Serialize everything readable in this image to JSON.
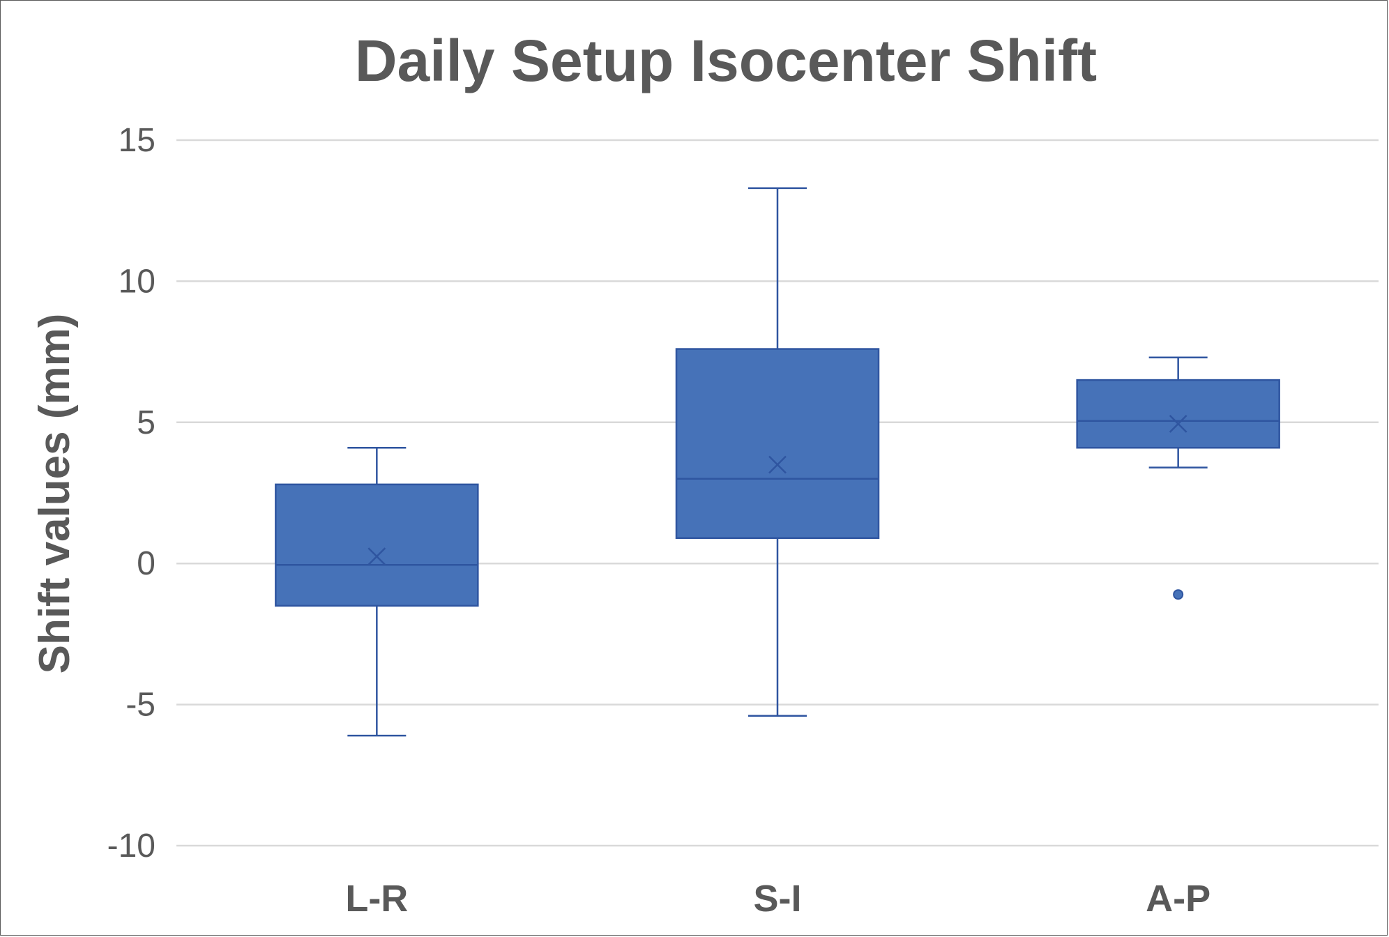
{
  "chart_data": {
    "type": "box",
    "title": "Daily Setup Isocenter Shift",
    "ylabel": "Shift values (mm)",
    "xlabel": "",
    "ylim": [
      -10,
      15
    ],
    "yticks": [
      15,
      10,
      5,
      0,
      -5,
      -10
    ],
    "ytick_labels": [
      "15",
      "10",
      "5",
      "0",
      "-5",
      "-10"
    ],
    "grid": true,
    "categories": [
      "L-R",
      "S-I",
      "A-P"
    ],
    "boxes": [
      {
        "category": "L-R",
        "min": -6.1,
        "q1": -1.5,
        "median": -0.05,
        "q3": 2.8,
        "max": 4.1,
        "mean": 0.25,
        "outliers": []
      },
      {
        "category": "S-I",
        "min": -5.4,
        "q1": 0.9,
        "median": 3.0,
        "q3": 7.6,
        "max": 13.3,
        "mean": 3.5,
        "outliers": []
      },
      {
        "category": "A-P",
        "min": 3.4,
        "q1": 4.1,
        "median": 5.05,
        "q3": 6.5,
        "max": 7.3,
        "mean": 4.95,
        "outliers": [
          -1.1
        ]
      }
    ],
    "colors": {
      "box_fill": "#4672b8",
      "box_stroke": "#2f55a0",
      "whisker": "#2f55a0",
      "grid": "#d9d9d9",
      "text": "#595959"
    }
  }
}
